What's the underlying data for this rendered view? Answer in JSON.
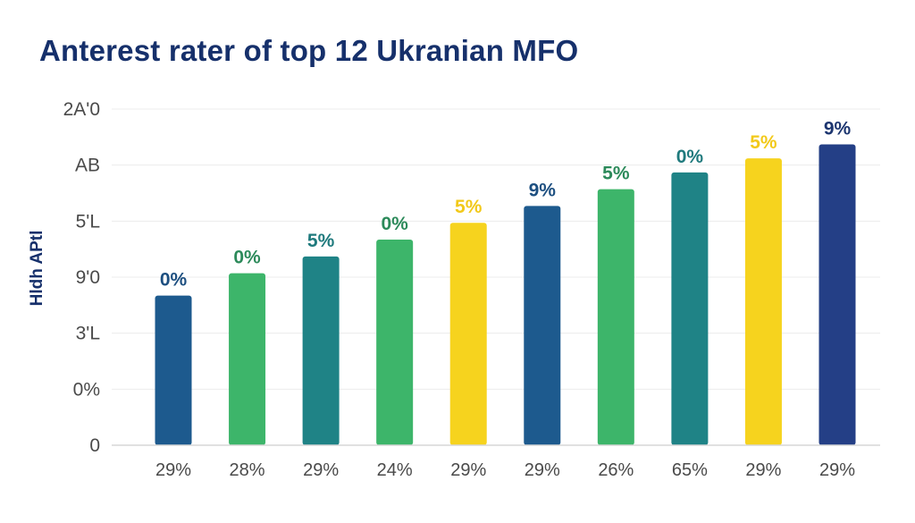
{
  "chart_data": {
    "type": "bar",
    "title": "Anterest rater of top 12 Ukranian MFO",
    "xlabel": "",
    "ylabel": "Hldh APtl",
    "y_tick_labels": [
      "0",
      "0%",
      "3'L",
      "9'0",
      "5'L",
      "AB",
      "2A'0"
    ],
    "categories": [
      "29%",
      "28%",
      "29%",
      "24%",
      "29%",
      "29%",
      "26%",
      "65%",
      "29%",
      "29%"
    ],
    "values": [
      2.67,
      3.07,
      3.37,
      3.67,
      3.97,
      4.27,
      4.57,
      4.87,
      5.12,
      5.37
    ],
    "data_labels": [
      "0%",
      "0%",
      "5%",
      "0%",
      "5%",
      "9%",
      "5%",
      "0%",
      "5%",
      "9%"
    ],
    "colors": [
      "#1d5a8e",
      "#3db56a",
      "#1f8386",
      "#3db56a",
      "#f6d31e",
      "#1d5a8e",
      "#3db56a",
      "#1f8386",
      "#f6d31e",
      "#243f86"
    ],
    "label_colors": [
      "#1d4f80",
      "#2c8a5a",
      "#1f7a7d",
      "#2c8a5a",
      "#f2c91a",
      "#1d4f80",
      "#2c8a5a",
      "#1f7a7d",
      "#f2c91a",
      "#1d3670"
    ],
    "ylim": [
      0,
      6
    ],
    "grid": true,
    "legend": "none"
  }
}
